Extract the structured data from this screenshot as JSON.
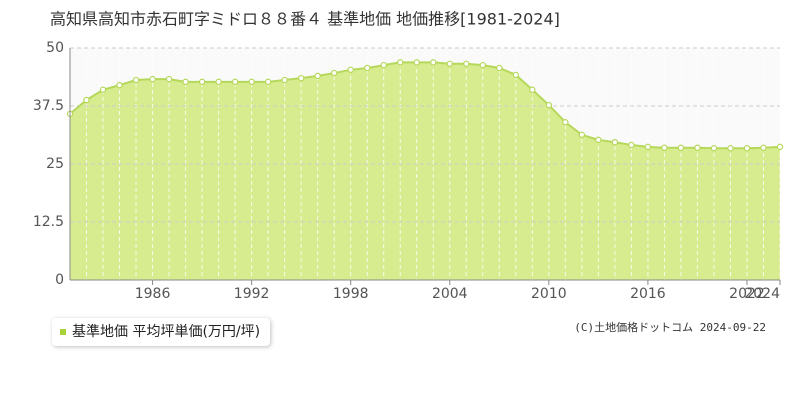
{
  "chart_data": {
    "type": "area",
    "title": "高知県高知市赤石町字ミドロ８８番４ 基準地価 地価推移[1981-2024]",
    "credit": "(C)土地価格ドットコム 2024-09-22",
    "x": [
      1981,
      1982,
      1983,
      1984,
      1985,
      1986,
      1987,
      1988,
      1989,
      1990,
      1991,
      1992,
      1993,
      1994,
      1995,
      1996,
      1997,
      1998,
      1999,
      2000,
      2001,
      2002,
      2003,
      2004,
      2005,
      2006,
      2007,
      2008,
      2009,
      2010,
      2011,
      2012,
      2013,
      2014,
      2015,
      2016,
      2017,
      2018,
      2019,
      2020,
      2021,
      2022,
      2023,
      2024
    ],
    "series": [
      {
        "name": "基準地価 平均坪単価(万円/坪)",
        "color": "#b5d85a",
        "fill": "#d7ec8f",
        "marker_color": "#a8d23c",
        "values": [
          35.8,
          38.8,
          41,
          42,
          43.1,
          43.3,
          43.3,
          42.7,
          42.7,
          42.7,
          42.7,
          42.7,
          42.7,
          43.1,
          43.5,
          44,
          44.6,
          45.3,
          45.7,
          46.3,
          46.9,
          46.9,
          46.9,
          46.6,
          46.6,
          46.3,
          45.7,
          44.2,
          41,
          37.7,
          34,
          31.3,
          30.2,
          29.7,
          29.1,
          28.7,
          28.5,
          28.5,
          28.5,
          28.4,
          28.4,
          28.4,
          28.5,
          28.7
        ]
      }
    ],
    "xlim": [
      1981,
      2024
    ],
    "xticks": [
      1986,
      1992,
      1998,
      2004,
      2010,
      2016,
      2022,
      2024
    ],
    "ylim": [
      0,
      50
    ],
    "yticks": [
      0,
      12.5,
      25,
      37.5,
      50
    ],
    "grid": true
  }
}
